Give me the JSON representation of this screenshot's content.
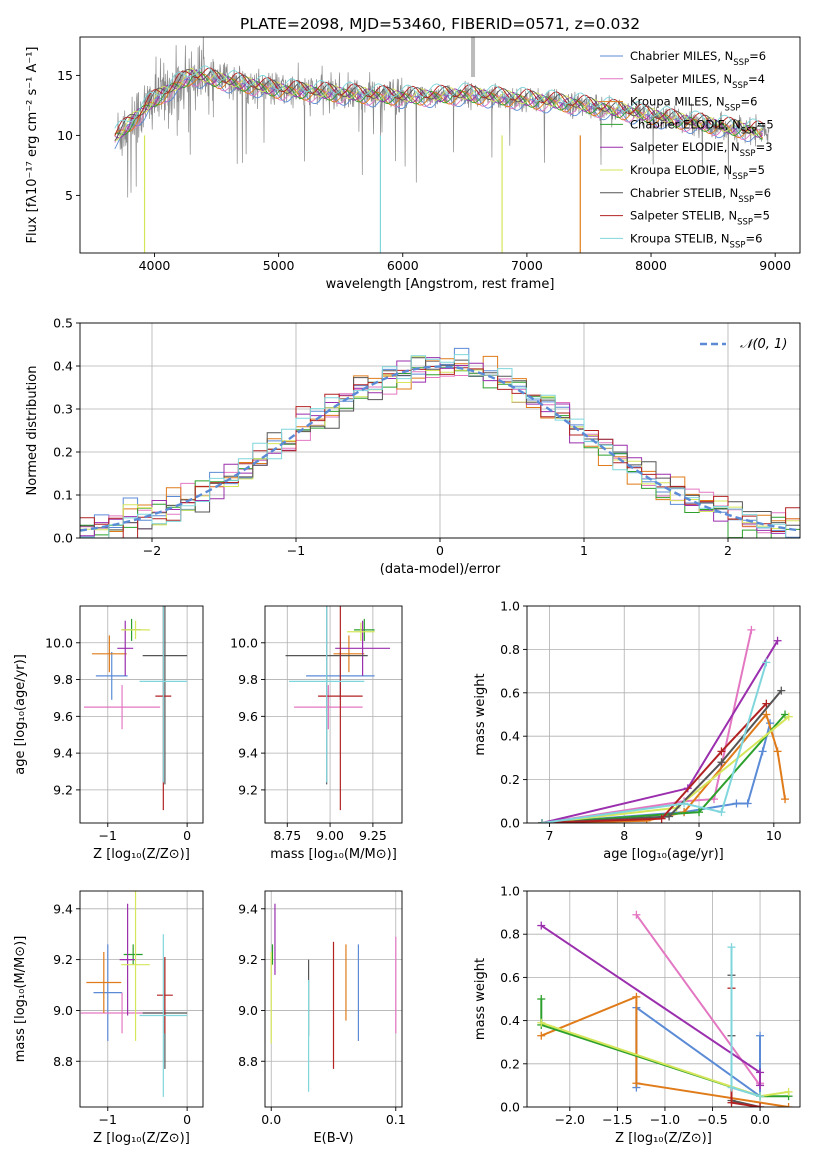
{
  "figure_title": "PLATE=2098, MJD=53460, FIBERID=0571, z=0.032",
  "colors": {
    "Chabrier MILES": "#5b8bd6",
    "Salpeter MILES": "#e377c2",
    "Kroupa MILES": "#e07b1a",
    "Chabrier ELODIE": "#2ca02c",
    "Salpeter ELODIE": "#9b2fae",
    "Kroupa ELODIE": "#d6e65a",
    "Chabrier STELIB": "#555555",
    "Salpeter STELIB": "#b22222",
    "Kroupa STELIB": "#7fd6dc"
  },
  "chart_data": [
    {
      "id": "spectrum",
      "type": "line",
      "title": "PLATE=2098, MJD=53460, FIBERID=0571, z=0.032",
      "xlabel": "wavelength [Angstrom, rest frame]",
      "ylabel": "Flux [fλ10⁻¹⁷ erg cm⁻² s⁻¹ A⁻¹]",
      "xlim": [
        3400,
        9200
      ],
      "ylim": [
        0.2,
        18.2
      ],
      "xticks": [
        "4000",
        "5000",
        "6000",
        "7000",
        "8000",
        "9000"
      ],
      "yticks": [
        "5",
        "10",
        "15"
      ],
      "grid": false,
      "legend": "top-right",
      "legend_entries": [
        {
          "name": "Chabrier MILES, N",
          "sub": "SSP",
          "tail": "=6"
        },
        {
          "name": "Salpeter MILES, N",
          "sub": "SSP",
          "tail": "=4"
        },
        {
          "name": "Kroupa MILES, N",
          "sub": "SSP",
          "tail": "=6"
        },
        {
          "name": "Chabrier ELODIE, N",
          "sub": "SSP",
          "tail": "=5"
        },
        {
          "name": "Salpeter ELODIE, N",
          "sub": "SSP",
          "tail": "=3"
        },
        {
          "name": "Kroupa ELODIE, N",
          "sub": "SSP",
          "tail": "=5"
        },
        {
          "name": "Chabrier STELIB, N",
          "sub": "SSP",
          "tail": "=6"
        },
        {
          "name": "Salpeter STELIB, N",
          "sub": "SSP",
          "tail": "=5"
        },
        {
          "name": "Kroupa STELIB, N",
          "sub": "SSP",
          "tail": "=6"
        }
      ],
      "data_trend": {
        "x": [
          3700,
          4000,
          4300,
          4600,
          5000,
          5500,
          6000,
          6500,
          7000,
          7400,
          7800,
          8200,
          8600,
          8900
        ],
        "y": [
          10.0,
          13.0,
          15.0,
          14.5,
          13.8,
          13.5,
          13.2,
          13.4,
          13.0,
          12.6,
          12.0,
          11.3,
          10.7,
          10.3
        ]
      }
    },
    {
      "id": "residuals",
      "type": "bar",
      "xlabel": "(data-model)/error",
      "ylabel": "Normed distribution",
      "xlim": [
        -2.5,
        2.5
      ],
      "ylim": [
        0,
        0.5
      ],
      "xticks": [
        "−2",
        "−1",
        "0",
        "1",
        "2"
      ],
      "yticks": [
        "0.0",
        "0.1",
        "0.2",
        "0.3",
        "0.4",
        "0.5"
      ],
      "grid": true,
      "legend": "top-right",
      "legend_label": "𝒩(0, 1)",
      "bin_width": 0.1
    },
    {
      "id": "age-z",
      "type": "scatter",
      "xlabel": "Z [log₁₀(Z/Z⊙)]",
      "ylabel": "age  [log₁₀(age/yr)]",
      "xlim": [
        -1.35,
        0.2
      ],
      "ylim": [
        9.02,
        10.2
      ],
      "xticks": [
        "−1",
        "0"
      ],
      "yticks": [
        "9.2",
        "9.4",
        "9.6",
        "9.8",
        "10.0"
      ],
      "grid": true,
      "points": [
        {
          "series": "Chabrier MILES",
          "x": -0.95,
          "y": 9.82,
          "xerr": 0.2,
          "yerr": 0.13
        },
        {
          "series": "Salpeter MILES",
          "x": -0.82,
          "y": 9.65,
          "xerr": 0.48,
          "yerr": 0.12
        },
        {
          "series": "Kroupa MILES",
          "x": -0.98,
          "y": 9.94,
          "xerr": 0.22,
          "yerr": 0.1
        },
        {
          "series": "Chabrier ELODIE",
          "x": -0.7,
          "y": 10.07,
          "xerr": 0.12,
          "yerr": 0.06
        },
        {
          "series": "Salpeter ELODIE",
          "x": -0.78,
          "y": 9.97,
          "xerr": 0.1,
          "yerr": 0.15
        },
        {
          "series": "Kroupa ELODIE",
          "x": -0.65,
          "y": 10.07,
          "xerr": 0.18,
          "yerr": 0.05
        },
        {
          "series": "Chabrier STELIB",
          "x": -0.28,
          "y": 9.93,
          "xerr": 0.28,
          "yerr": 0.7
        },
        {
          "series": "Salpeter STELIB",
          "x": -0.3,
          "y": 9.71,
          "xerr": 0.1,
          "yerr": 0.62
        },
        {
          "series": "Kroupa STELIB",
          "x": -0.3,
          "y": 9.79,
          "xerr": 0.3,
          "yerr": 0.55
        }
      ]
    },
    {
      "id": "age-mass",
      "type": "scatter",
      "xlabel": "mass [log₁₀(M/M⊙)]",
      "xlim": [
        8.62,
        9.42
      ],
      "ylim": [
        9.02,
        10.2
      ],
      "xticks": [
        "8.75",
        "9.00",
        "9.25"
      ],
      "yticks": [
        "9.2",
        "9.4",
        "9.6",
        "9.8",
        "10.0"
      ],
      "grid": true,
      "points": [
        {
          "series": "Chabrier MILES",
          "x": 9.06,
          "y": 9.82,
          "xerr": 0.2,
          "yerr": 0.13
        },
        {
          "series": "Salpeter MILES",
          "x": 8.99,
          "y": 9.65,
          "xerr": 0.2,
          "yerr": 0.12
        },
        {
          "series": "Kroupa MILES",
          "x": 9.11,
          "y": 9.94,
          "xerr": 0.09,
          "yerr": 0.1
        },
        {
          "series": "Chabrier ELODIE",
          "x": 9.2,
          "y": 10.07,
          "xerr": 0.06,
          "yerr": 0.06
        },
        {
          "series": "Salpeter ELODIE",
          "x": 9.19,
          "y": 9.97,
          "xerr": 0.16,
          "yerr": 0.15
        },
        {
          "series": "Kroupa ELODIE",
          "x": 9.18,
          "y": 10.06,
          "xerr": 0.08,
          "yerr": 0.05
        },
        {
          "series": "Chabrier STELIB",
          "x": 8.98,
          "y": 9.93,
          "xerr": 0.24,
          "yerr": 0.7
        },
        {
          "series": "Salpeter STELIB",
          "x": 9.06,
          "y": 9.71,
          "xerr": 0.13,
          "yerr": 0.62
        },
        {
          "series": "Kroupa STELIB",
          "x": 8.98,
          "y": 9.79,
          "xerr": 0.22,
          "yerr": 0.55
        }
      ]
    },
    {
      "id": "weight-age",
      "type": "line",
      "xlabel": "age  [log₁₀(age/yr)]",
      "ylabel": "mass weight",
      "xlim": [
        6.7,
        10.35
      ],
      "ylim": [
        0,
        1.0
      ],
      "xticks": [
        "7",
        "8",
        "9",
        "10"
      ],
      "yticks": [
        "0.0",
        "0.2",
        "0.4",
        "0.6",
        "0.8",
        "1.0"
      ],
      "grid": true,
      "series": [
        {
          "name": "Chabrier MILES",
          "x": [
            6.9,
            8.8,
            9.5,
            9.65,
            9.85,
            9.95
          ],
          "y": [
            0.0,
            0.05,
            0.09,
            0.09,
            0.33,
            0.46
          ]
        },
        {
          "name": "Salpeter MILES",
          "x": [
            6.9,
            8.8,
            9.2,
            9.7
          ],
          "y": [
            0.0,
            0.1,
            0.11,
            0.89
          ]
        },
        {
          "name": "Kroupa MILES",
          "x": [
            6.9,
            8.3,
            8.8,
            9.9,
            10.05,
            10.15
          ],
          "y": [
            0.0,
            0.01,
            0.05,
            0.5,
            0.33,
            0.11
          ]
        },
        {
          "name": "Chabrier ELODIE",
          "x": [
            6.9,
            9.0,
            10.15
          ],
          "y": [
            0.0,
            0.05,
            0.5
          ]
        },
        {
          "name": "Salpeter ELODIE",
          "x": [
            6.9,
            8.85,
            10.05
          ],
          "y": [
            0.0,
            0.16,
            0.84
          ]
        },
        {
          "name": "Kroupa ELODIE",
          "x": [
            6.9,
            8.7,
            10.2
          ],
          "y": [
            0.0,
            0.07,
            0.49
          ]
        },
        {
          "name": "Chabrier STELIB",
          "x": [
            6.9,
            8.6,
            9.3,
            10.1
          ],
          "y": [
            0.0,
            0.03,
            0.28,
            0.61
          ]
        },
        {
          "name": "Salpeter STELIB",
          "x": [
            6.9,
            8.5,
            9.3,
            9.9
          ],
          "y": [
            0.0,
            0.02,
            0.33,
            0.55
          ]
        },
        {
          "name": "Kroupa STELIB",
          "x": [
            6.9,
            8.8,
            9.3,
            9.9
          ],
          "y": [
            0.0,
            0.09,
            0.05,
            0.74
          ]
        }
      ]
    },
    {
      "id": "mass-z",
      "type": "scatter",
      "xlabel": "Z [log₁₀(Z/Z⊙)]",
      "ylabel": "mass [log₁₀(M/M⊙)]",
      "xlim": [
        -1.35,
        0.2
      ],
      "ylim": [
        8.62,
        9.47
      ],
      "xticks": [
        "−1",
        "0"
      ],
      "yticks": [
        "8.8",
        "9.0",
        "9.2",
        "9.4"
      ],
      "grid": true,
      "points": [
        {
          "series": "Chabrier MILES",
          "x": -1.0,
          "y": 9.07,
          "xerr": 0.18,
          "yerr": 0.19
        },
        {
          "series": "Salpeter MILES",
          "x": -0.82,
          "y": 8.99,
          "xerr": 0.52,
          "yerr": 0.08
        },
        {
          "series": "Kroupa MILES",
          "x": -1.05,
          "y": 9.11,
          "xerr": 0.22,
          "yerr": 0.12
        },
        {
          "series": "Chabrier ELODIE",
          "x": -0.68,
          "y": 9.22,
          "xerr": 0.12,
          "yerr": 0.04
        },
        {
          "series": "Salpeter ELODIE",
          "x": -0.75,
          "y": 9.2,
          "xerr": 0.1,
          "yerr": 0.22
        },
        {
          "series": "Kroupa ELODIE",
          "x": -0.65,
          "y": 9.18,
          "xerr": 0.18,
          "yerr": 0.3
        },
        {
          "series": "Chabrier STELIB",
          "x": -0.28,
          "y": 8.99,
          "xerr": 0.28,
          "yerr": 0.22
        },
        {
          "series": "Salpeter STELIB",
          "x": -0.28,
          "y": 9.06,
          "xerr": 0.1,
          "yerr": 0.15
        },
        {
          "series": "Kroupa STELIB",
          "x": -0.3,
          "y": 8.98,
          "xerr": 0.3,
          "yerr": 0.32
        }
      ]
    },
    {
      "id": "mass-ebv",
      "type": "scatter",
      "xlabel": "E(B-V)",
      "xlim": [
        -0.005,
        0.105
      ],
      "ylim": [
        8.62,
        9.47
      ],
      "xticks": [
        "0.0",
        "0.1"
      ],
      "yticks": [
        "8.8",
        "9.0",
        "9.2",
        "9.4"
      ],
      "grid": true,
      "points": [
        {
          "series": "Chabrier MILES",
          "x": 0.07,
          "y": 9.07,
          "yerr": 0.19
        },
        {
          "series": "Salpeter MILES",
          "x": 0.1,
          "y": 9.1,
          "yerr": 0.19
        },
        {
          "series": "Kroupa MILES",
          "x": 0.06,
          "y": 9.11,
          "yerr": 0.15
        },
        {
          "series": "Chabrier ELODIE",
          "x": 0.001,
          "y": 9.22,
          "yerr": 0.04
        },
        {
          "series": "Salpeter ELODIE",
          "x": 0.003,
          "y": 9.28,
          "yerr": 0.14
        },
        {
          "series": "Kroupa ELODIE",
          "x": 0.0,
          "y": 9.05,
          "yerr": 0.18
        },
        {
          "series": "Chabrier STELIB",
          "x": 0.03,
          "y": 9.05,
          "yerr": 0.15
        },
        {
          "series": "Salpeter STELIB",
          "x": 0.05,
          "y": 9.02,
          "yerr": 0.25
        },
        {
          "series": "Kroupa STELIB",
          "x": 0.03,
          "y": 8.9,
          "yerr": 0.22
        }
      ]
    },
    {
      "id": "weight-z",
      "type": "line",
      "xlabel": "Z [log₁₀(Z/Z⊙)]",
      "ylabel": "mass weight",
      "xlim": [
        -2.45,
        0.42
      ],
      "ylim": [
        0,
        1.0
      ],
      "xticks": [
        "−2.0",
        "−1.5",
        "−1.0",
        "−0.5",
        "0.0"
      ],
      "yticks": [
        "0.0",
        "0.2",
        "0.4",
        "0.6",
        "0.8",
        "1.0"
      ],
      "grid": true,
      "series": [
        {
          "name": "Chabrier MILES",
          "x": [
            -1.3,
            -1.3,
            -0.0,
            -0.0
          ],
          "y": [
            0.09,
            0.46,
            0.05,
            0.33
          ]
        },
        {
          "name": "Salpeter MILES",
          "x": [
            -1.3,
            0.0,
            0.0
          ],
          "y": [
            0.89,
            0.1,
            0.11
          ]
        },
        {
          "name": "Kroupa MILES",
          "x": [
            -2.3,
            -1.3,
            -1.3,
            0.3
          ],
          "y": [
            0.33,
            0.51,
            0.11,
            0.0
          ]
        },
        {
          "name": "Chabrier ELODIE",
          "x": [
            -2.3,
            -2.3,
            0.0,
            0.3
          ],
          "y": [
            0.5,
            0.38,
            0.05,
            0.05
          ]
        },
        {
          "name": "Salpeter ELODIE",
          "x": [
            -2.3,
            0.0,
            0.0
          ],
          "y": [
            0.84,
            0.16,
            0.1
          ]
        },
        {
          "name": "Kroupa ELODIE",
          "x": [
            -2.3,
            0.0,
            0.3
          ],
          "y": [
            0.39,
            0.05,
            0.07
          ]
        },
        {
          "name": "Chabrier STELIB",
          "x": [
            -0.3,
            -0.3,
            -0.3,
            0.0
          ],
          "y": [
            0.61,
            0.33,
            0.03,
            0.0
          ]
        },
        {
          "name": "Salpeter STELIB",
          "x": [
            -0.3,
            -0.3,
            0.0
          ],
          "y": [
            0.55,
            0.02,
            0.0
          ]
        },
        {
          "name": "Kroupa STELIB",
          "x": [
            -0.3,
            -0.3,
            0.0
          ],
          "y": [
            0.74,
            0.09,
            0.05
          ]
        }
      ]
    }
  ]
}
